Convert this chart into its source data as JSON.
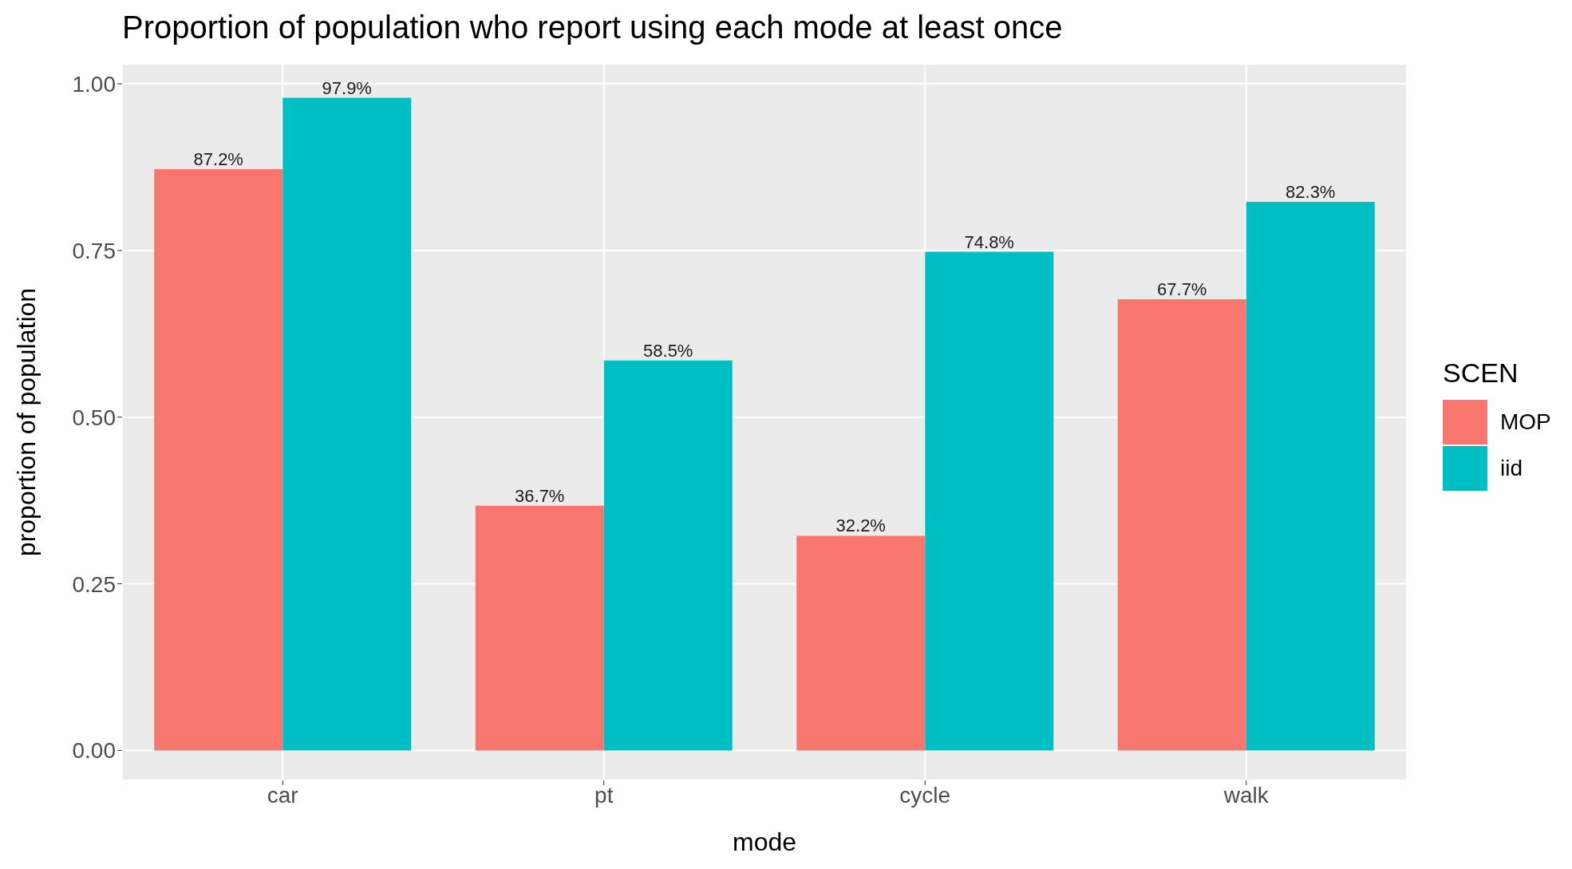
{
  "chart_data": {
    "type": "bar",
    "title": "Proportion of population who report using each mode at least once",
    "xlabel": "mode",
    "ylabel": "proportion of population",
    "legend_title": "SCEN",
    "categories": [
      "car",
      "pt",
      "cycle",
      "walk"
    ],
    "series": [
      {
        "name": "MOP",
        "color": "#f8766d",
        "values": [
          0.872,
          0.367,
          0.322,
          0.677
        ],
        "value_labels": [
          "87.2%",
          "36.7%",
          "32.2%",
          "67.7%"
        ]
      },
      {
        "name": "iid",
        "color": "#00bfc4",
        "values": [
          0.979,
          0.585,
          0.748,
          0.823
        ],
        "value_labels": [
          "97.9%",
          "58.5%",
          "74.8%",
          "82.3%"
        ]
      }
    ],
    "ylim": [
      -0.045,
      1.03
    ],
    "yticks": [
      {
        "value": 0,
        "label": "0.00"
      },
      {
        "value": 0.25,
        "label": "0.25"
      },
      {
        "value": 0.5,
        "label": "0.50"
      },
      {
        "value": 0.75,
        "label": "0.75"
      },
      {
        "value": 1,
        "label": "1.00"
      }
    ],
    "grid": true,
    "legend": "right"
  }
}
